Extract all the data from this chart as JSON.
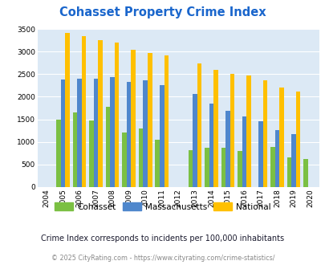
{
  "title": "Cohasset Property Crime Index",
  "years": [
    2004,
    2005,
    2006,
    2007,
    2008,
    2009,
    2010,
    2011,
    2012,
    2013,
    2014,
    2015,
    2016,
    2017,
    2018,
    2019,
    2020
  ],
  "cohasset": [
    0,
    1500,
    1650,
    1480,
    1780,
    1200,
    1300,
    1050,
    0,
    820,
    860,
    870,
    790,
    0,
    890,
    660,
    610
  ],
  "massachusetts": [
    0,
    2380,
    2400,
    2400,
    2440,
    2320,
    2360,
    2260,
    0,
    2060,
    1850,
    1680,
    1560,
    1460,
    1260,
    1170,
    0
  ],
  "national": [
    0,
    3420,
    3340,
    3260,
    3210,
    3050,
    2970,
    2910,
    0,
    2740,
    2600,
    2500,
    2480,
    2360,
    2210,
    2110,
    0
  ],
  "cohasset_color": "#7bc043",
  "massachusetts_color": "#4f87cc",
  "national_color": "#ffc000",
  "plot_bg": "#dce9f5",
  "ylim": [
    0,
    3500
  ],
  "yticks": [
    0,
    500,
    1000,
    1500,
    2000,
    2500,
    3000,
    3500
  ],
  "subtitle": "Crime Index corresponds to incidents per 100,000 inhabitants",
  "footer": "© 2025 CityRating.com - https://www.cityrating.com/crime-statistics/",
  "title_color": "#1a66cc",
  "subtitle_color": "#1a1a2e",
  "footer_color": "#888888"
}
